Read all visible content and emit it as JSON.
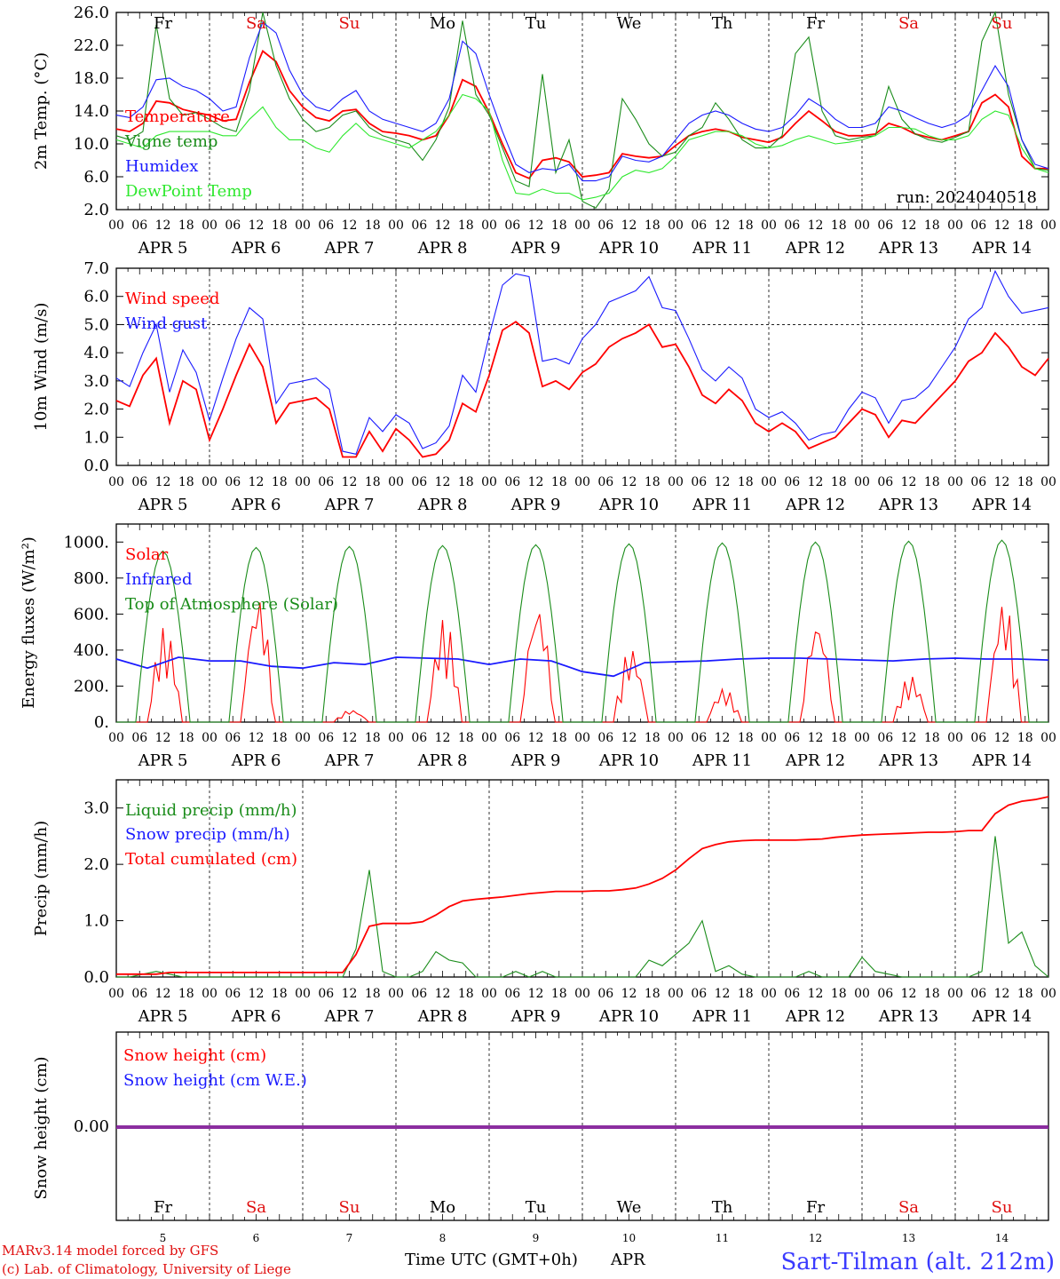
{
  "days": {
    "names": [
      "Fr",
      "Sa",
      "Su",
      "Mo",
      "Tu",
      "We",
      "Th",
      "Fr",
      "Sa",
      "Su"
    ],
    "weekend": [
      false,
      true,
      true,
      false,
      false,
      false,
      false,
      false,
      true,
      true
    ],
    "dates": [
      "5",
      "6",
      "7",
      "8",
      "9",
      "10",
      "11",
      "12",
      "13",
      "14"
    ],
    "hour_labels": [
      "00",
      "06",
      "12",
      "18"
    ],
    "month": "APR",
    "weekday_color": "#000000",
    "weekend_color": "#e01010"
  },
  "run_label": "run: 2024040518",
  "footer": {
    "model_line": "MARv3.14 model forced by GFS",
    "lab_line": "(c) Lab. of Climatology, University of Liege",
    "axis_title": "Time UTC (GMT+0h)",
    "axis_month": "APR",
    "station": "Sart-Tilman (alt. 212m)"
  },
  "chart_data": [
    {
      "type": "line",
      "title": "",
      "ylabel": "2m Temp. (°C)",
      "ylim": [
        2,
        26
      ],
      "yticks": [
        "2.0",
        "6.0",
        "10.0",
        "14.0",
        "18.0",
        "22.0",
        "26.0"
      ],
      "x_unit": "hours since 2024-04-05 00 UTC, 3-hourly, 0..240",
      "series": [
        {
          "name": "Temperature",
          "color": "#ff0000",
          "values": [
            11.8,
            11.5,
            12.5,
            15.2,
            15.0,
            14.2,
            13.8,
            13.5,
            12.8,
            13.0,
            17.5,
            21.3,
            20.0,
            16.5,
            14.5,
            13.2,
            12.8,
            14.0,
            14.2,
            12.5,
            11.5,
            11.3,
            11.0,
            10.5,
            11.0,
            13.5,
            17.8,
            17.0,
            13.8,
            10.0,
            6.5,
            5.8,
            8.0,
            8.3,
            7.8,
            6.0,
            6.2,
            6.5,
            8.8,
            8.5,
            8.3,
            8.5,
            9.8,
            11.0,
            11.5,
            11.8,
            11.5,
            10.8,
            10.5,
            10.2,
            10.8,
            12.5,
            14.0,
            12.8,
            11.5,
            11.0,
            11.0,
            11.2,
            12.5,
            12.0,
            11.2,
            10.8,
            10.5,
            11.0,
            11.5,
            15.0,
            16.0,
            14.5,
            8.5,
            7.0,
            7.0
          ]
        },
        {
          "name": "Vigne temp",
          "color": "#1a8c1a",
          "values": [
            11.0,
            10.5,
            11.5,
            24.5,
            15.5,
            13.5,
            13.8,
            13.0,
            12.0,
            11.5,
            16.5,
            26.0,
            19.5,
            15.5,
            13.0,
            11.5,
            12.0,
            13.5,
            14.0,
            12.0,
            11.0,
            10.5,
            10.0,
            8.0,
            10.5,
            14.5,
            25.0,
            16.0,
            13.5,
            9.5,
            5.5,
            4.8,
            18.5,
            6.5,
            10.5,
            3.0,
            2.2,
            4.5,
            15.5,
            13.0,
            10.0,
            8.5,
            9.0,
            11.0,
            12.0,
            15.0,
            13.0,
            10.5,
            9.5,
            9.5,
            11.0,
            21.0,
            23.0,
            14.0,
            11.0,
            10.5,
            10.8,
            11.0,
            17.0,
            13.0,
            11.2,
            10.5,
            10.2,
            10.8,
            11.5,
            22.5,
            26.0,
            16.0,
            10.5,
            7.0,
            6.8
          ]
        },
        {
          "name": "Humidex",
          "color": "#1a1aff",
          "values": [
            13.5,
            13.2,
            14.5,
            17.8,
            18.0,
            17.0,
            16.5,
            15.5,
            14.0,
            14.5,
            20.5,
            24.8,
            23.5,
            19.0,
            16.0,
            14.5,
            14.0,
            15.5,
            16.5,
            14.0,
            13.0,
            12.5,
            12.0,
            11.5,
            12.5,
            15.5,
            22.5,
            21.0,
            16.0,
            11.5,
            7.5,
            6.5,
            7.0,
            6.8,
            7.5,
            5.5,
            5.5,
            6.0,
            8.5,
            8.0,
            7.8,
            8.5,
            10.5,
            12.5,
            13.5,
            14.0,
            13.5,
            12.5,
            11.8,
            11.5,
            12.0,
            13.5,
            15.5,
            14.5,
            13.0,
            12.0,
            12.0,
            12.5,
            14.5,
            14.0,
            13.2,
            12.5,
            12.0,
            12.5,
            13.5,
            16.5,
            19.5,
            17.0,
            10.5,
            7.5,
            7.0
          ]
        },
        {
          "name": "DewPoint Temp",
          "color": "#2ee82e",
          "values": [
            10.5,
            10.0,
            9.5,
            11.0,
            11.5,
            11.5,
            11.5,
            11.5,
            11.0,
            11.0,
            13.0,
            14.5,
            12.0,
            10.5,
            10.5,
            9.5,
            9.0,
            11.0,
            12.5,
            11.0,
            10.5,
            10.0,
            9.5,
            10.5,
            11.5,
            13.5,
            16.0,
            15.5,
            14.0,
            8.0,
            4.0,
            3.8,
            4.5,
            4.0,
            4.0,
            3.2,
            3.5,
            4.0,
            6.0,
            6.8,
            6.5,
            7.0,
            8.5,
            10.5,
            11.0,
            11.5,
            11.5,
            11.0,
            10.0,
            9.5,
            9.8,
            10.5,
            11.0,
            10.5,
            10.0,
            10.2,
            10.5,
            11.0,
            12.0,
            12.0,
            11.8,
            11.0,
            10.5,
            10.5,
            11.0,
            13.0,
            14.0,
            13.5,
            9.5,
            7.0,
            6.5
          ]
        }
      ]
    },
    {
      "type": "line",
      "title": "",
      "ylabel": "10m Wind (m/s)",
      "ylim": [
        0,
        7
      ],
      "yticks": [
        "0.0",
        "1.0",
        "2.0",
        "3.0",
        "4.0",
        "5.0",
        "6.0",
        "7.0"
      ],
      "reference_line": 5,
      "series": [
        {
          "name": "Wind speed",
          "color": "#ff0000",
          "values": [
            2.3,
            2.1,
            3.2,
            3.8,
            1.5,
            3.0,
            2.7,
            0.9,
            2.0,
            3.2,
            4.3,
            3.5,
            1.5,
            2.2,
            2.3,
            2.4,
            2.0,
            0.3,
            0.3,
            1.2,
            0.5,
            1.3,
            0.9,
            0.3,
            0.4,
            0.9,
            2.2,
            1.9,
            3.2,
            4.8,
            5.1,
            4.7,
            2.8,
            3.0,
            2.7,
            3.3,
            3.6,
            4.2,
            4.5,
            4.7,
            5.0,
            4.2,
            4.3,
            3.5,
            2.5,
            2.2,
            2.7,
            2.3,
            1.5,
            1.2,
            1.5,
            1.2,
            0.6,
            0.8,
            1.0,
            1.5,
            2.0,
            1.8,
            1.0,
            1.6,
            1.5,
            2.0,
            2.5,
            3.0,
            3.7,
            4.0,
            4.7,
            4.2,
            3.5,
            3.2,
            3.8
          ]
        },
        {
          "name": "Wind gust",
          "color": "#1a1aff",
          "values": [
            3.1,
            2.8,
            4.0,
            5.0,
            2.6,
            4.1,
            3.3,
            1.6,
            3.1,
            4.5,
            5.6,
            5.2,
            2.2,
            2.9,
            3.0,
            3.1,
            2.7,
            0.5,
            0.4,
            1.7,
            1.2,
            1.8,
            1.5,
            0.6,
            0.8,
            1.4,
            3.2,
            2.6,
            4.6,
            6.4,
            6.8,
            6.7,
            3.7,
            3.8,
            3.6,
            4.5,
            5.0,
            5.8,
            6.0,
            6.2,
            6.7,
            5.6,
            5.5,
            4.5,
            3.4,
            3.0,
            3.5,
            3.1,
            2.0,
            1.7,
            1.9,
            1.5,
            0.9,
            1.1,
            1.2,
            2.0,
            2.6,
            2.4,
            1.5,
            2.3,
            2.4,
            2.8,
            3.5,
            4.2,
            5.2,
            5.6,
            6.9,
            6.0,
            5.4,
            5.5,
            5.6
          ]
        }
      ]
    },
    {
      "type": "line",
      "title": "",
      "ylabel": "Energy fluxes (W/m²)",
      "ylim": [
        0,
        1100
      ],
      "yticks": [
        "0.",
        "200.",
        "400.",
        "600.",
        "800.",
        "1000."
      ],
      "series": [
        {
          "name": "Solar",
          "color": "#ff0000",
          "daily_peaks": [
            530,
            720,
            70,
            580,
            680,
            420,
            190,
            590,
            260,
            690
          ]
        },
        {
          "name": "Infrared",
          "color": "#1a1aff",
          "values": [
            350,
            300,
            360,
            340,
            340,
            310,
            300,
            330,
            320,
            360,
            355,
            350,
            320,
            350,
            340,
            280,
            255,
            330,
            335,
            340,
            350,
            355,
            355,
            350,
            345,
            340,
            350,
            355,
            350,
            350,
            345
          ]
        },
        {
          "name": "Top of Atmosphere (Solar)",
          "color": "#1a8c1a",
          "daily_peaks": [
            950,
            970,
            975,
            980,
            985,
            990,
            995,
            1000,
            1005,
            1010
          ]
        }
      ]
    },
    {
      "type": "line",
      "title": "",
      "ylabel": "Precip (mm/h)",
      "ylim": [
        0,
        3.5
      ],
      "yticks": [
        "0.0",
        "1.0",
        "2.0",
        "3.0"
      ],
      "series": [
        {
          "name": "Liquid precip (mm/h)",
          "color": "#1a8c1a",
          "values": [
            0.0,
            0.0,
            0.05,
            0.1,
            0.05,
            0.0,
            0.0,
            0.0,
            0.0,
            0.0,
            0.0,
            0.0,
            0.0,
            0.0,
            0.0,
            0.0,
            0.0,
            0.0,
            0.5,
            1.9,
            0.1,
            0.0,
            0.0,
            0.1,
            0.45,
            0.3,
            0.25,
            0.0,
            0.0,
            0.0,
            0.1,
            0.0,
            0.1,
            0.0,
            0.0,
            0.0,
            0.0,
            0.0,
            0.0,
            0.0,
            0.3,
            0.2,
            0.4,
            0.6,
            1.0,
            0.1,
            0.2,
            0.05,
            0.0,
            0.0,
            0.0,
            0.0,
            0.1,
            0.0,
            0.0,
            0.0,
            0.35,
            0.1,
            0.05,
            0.0,
            0.0,
            0.0,
            0.0,
            0.0,
            0.0,
            0.1,
            2.5,
            0.6,
            0.8,
            0.2,
            0.0
          ]
        },
        {
          "name": "Snow precip (mm/h)",
          "color": "#1a1aff",
          "values": []
        },
        {
          "name": "Total cumulated (cm)",
          "color": "#ff0000",
          "values": [
            0.05,
            0.05,
            0.05,
            0.05,
            0.08,
            0.08,
            0.08,
            0.08,
            0.08,
            0.08,
            0.08,
            0.08,
            0.08,
            0.08,
            0.08,
            0.08,
            0.08,
            0.08,
            0.4,
            0.9,
            0.95,
            0.95,
            0.95,
            0.98,
            1.1,
            1.25,
            1.35,
            1.38,
            1.4,
            1.42,
            1.45,
            1.48,
            1.5,
            1.52,
            1.52,
            1.52,
            1.53,
            1.53,
            1.55,
            1.58,
            1.65,
            1.75,
            1.9,
            2.1,
            2.28,
            2.35,
            2.4,
            2.42,
            2.43,
            2.43,
            2.43,
            2.43,
            2.44,
            2.45,
            2.48,
            2.5,
            2.52,
            2.53,
            2.54,
            2.55,
            2.56,
            2.57,
            2.57,
            2.58,
            2.6,
            2.6,
            2.9,
            3.05,
            3.12,
            3.15,
            3.2
          ]
        }
      ]
    },
    {
      "type": "line",
      "title": "",
      "ylabel": "Snow height (cm)",
      "ylim": [
        -1,
        1
      ],
      "yticks": [
        "0.00"
      ],
      "series": [
        {
          "name": "Snow height (cm)",
          "color": "#ff0000",
          "values": [
            0,
            0
          ]
        },
        {
          "name": "Snow height (cm W.E.)",
          "color": "#1a1aff",
          "values": [
            0,
            0
          ]
        }
      ]
    }
  ]
}
